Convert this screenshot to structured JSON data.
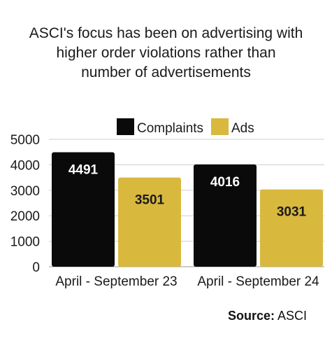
{
  "title_lines": [
    "ASCI's focus has been on advertising with",
    "higher order violations rather than",
    "number of advertisements"
  ],
  "source": {
    "label": "Source:",
    "value": "ASCI"
  },
  "colors": {
    "complaints": "#0a0a0a",
    "ads": "#d9b83e",
    "grid": "#cfcfcf",
    "complaints_text": "#ffffff",
    "ads_text": "#1a1a1a"
  },
  "chart_data": {
    "type": "bar",
    "categories": [
      "April - September 23",
      "April - September 24"
    ],
    "series": [
      {
        "name": "Complaints",
        "values": [
          4491,
          4016
        ]
      },
      {
        "name": "Ads",
        "values": [
          3501,
          3031
        ]
      }
    ],
    "ylim": [
      0,
      5000
    ],
    "yticks": [
      "0",
      "1000",
      "2000",
      "3000",
      "4000",
      "5000"
    ],
    "data_labels": [
      [
        "4491",
        "4016"
      ],
      [
        "3501",
        "3031"
      ]
    ],
    "legend": "top",
    "grid": true
  }
}
